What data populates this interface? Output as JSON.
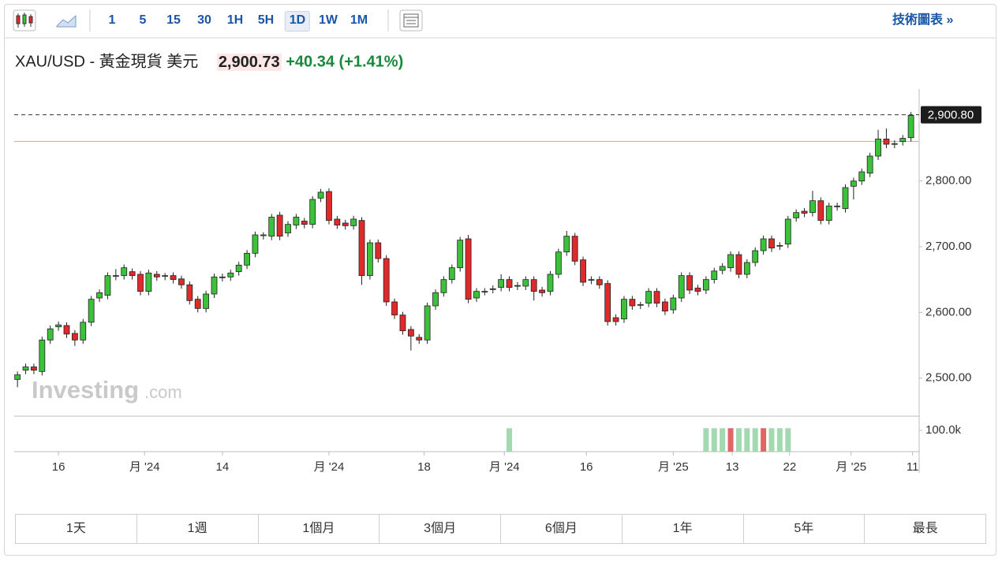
{
  "toolbar": {
    "intervals": [
      "1",
      "5",
      "15",
      "30",
      "1H",
      "5H",
      "1D",
      "1W",
      "1M"
    ],
    "selected_interval": "1D",
    "link": "技術圖表 »"
  },
  "quote": {
    "symbol": "XAU/USD - 黃金現貨 美元",
    "price": "2,900.73",
    "change": "+40.34",
    "change_percent": "(+1.41%)"
  },
  "ranges": [
    "1天",
    "1週",
    "1個月",
    "3個月",
    "6個月",
    "1年",
    "5年",
    "最長"
  ],
  "watermark": {
    "brand": "Investing",
    "suffix": ".com"
  },
  "chart_data": {
    "type": "candlestick",
    "up_color": "#3cc13b",
    "down_color": "#e0292b",
    "open": [
      2498,
      2512,
      2517,
      2510,
      2558,
      2578,
      2580,
      2568,
      2558,
      2585,
      2622,
      2626,
      2655,
      2656,
      2662,
      2658,
      2632,
      2658,
      2655,
      2656,
      2651,
      2642,
      2620,
      2606,
      2628,
      2653,
      2654,
      2662,
      2672,
      2690,
      2717,
      2716,
      2748,
      2721,
      2733,
      2739,
      2734,
      2774,
      2784,
      2742,
      2736,
      2732,
      2740,
      2656,
      2706,
      2682,
      2616,
      2596,
      2574,
      2562,
      2558,
      2610,
      2630,
      2650,
      2668,
      2712,
      2622,
      2631,
      2635,
      2638,
      2650,
      2640,
      2640,
      2650,
      2634,
      2632,
      2658,
      2692,
      2716,
      2680,
      2649,
      2650,
      2644,
      2592,
      2590,
      2620,
      2611,
      2614,
      2632,
      2616,
      2604,
      2622,
      2656,
      2637,
      2634,
      2650,
      2664,
      2668,
      2688,
      2658,
      2676,
      2694,
      2712,
      2701,
      2704,
      2744,
      2754,
      2752,
      2770,
      2740,
      2761,
      2758,
      2792,
      2800,
      2812,
      2838,
      2864,
      2856,
      2860,
      2866
    ],
    "high": [
      2510,
      2522,
      2522,
      2563,
      2580,
      2586,
      2585,
      2573,
      2590,
      2625,
      2635,
      2661,
      2666,
      2673,
      2667,
      2663,
      2665,
      2663,
      2660,
      2661,
      2656,
      2647,
      2625,
      2633,
      2659,
      2659,
      2665,
      2677,
      2695,
      2723,
      2722,
      2750,
      2753,
      2739,
      2750,
      2744,
      2777,
      2788,
      2789,
      2747,
      2741,
      2747,
      2745,
      2711,
      2711,
      2687,
      2621,
      2601,
      2579,
      2567,
      2615,
      2635,
      2655,
      2673,
      2715,
      2718,
      2637,
      2637,
      2641,
      2658,
      2655,
      2646,
      2655,
      2655,
      2639,
      2663,
      2697,
      2724,
      2721,
      2685,
      2655,
      2655,
      2649,
      2597,
      2625,
      2625,
      2616,
      2637,
      2637,
      2621,
      2627,
      2661,
      2661,
      2642,
      2655,
      2668,
      2675,
      2693,
      2693,
      2681,
      2699,
      2717,
      2717,
      2707,
      2747,
      2757,
      2759,
      2785,
      2775,
      2767,
      2767,
      2795,
      2805,
      2819,
      2843,
      2878,
      2880,
      2862,
      2870,
      2905
    ],
    "low": [
      2486,
      2506,
      2506,
      2504,
      2552,
      2572,
      2561,
      2549,
      2552,
      2579,
      2616,
      2620,
      2649,
      2650,
      2650,
      2626,
      2626,
      2648,
      2649,
      2644,
      2636,
      2612,
      2600,
      2600,
      2622,
      2647,
      2648,
      2656,
      2666,
      2684,
      2711,
      2710,
      2710,
      2715,
      2727,
      2728,
      2728,
      2768,
      2734,
      2727,
      2726,
      2726,
      2642,
      2650,
      2676,
      2610,
      2590,
      2566,
      2542,
      2552,
      2552,
      2604,
      2624,
      2644,
      2662,
      2614,
      2616,
      2626,
      2629,
      2632,
      2632,
      2634,
      2634,
      2618,
      2624,
      2626,
      2652,
      2686,
      2672,
      2640,
      2643,
      2636,
      2580,
      2580,
      2584,
      2604,
      2605,
      2608,
      2608,
      2596,
      2598,
      2616,
      2628,
      2626,
      2628,
      2644,
      2658,
      2662,
      2652,
      2652,
      2670,
      2688,
      2692,
      2695,
      2698,
      2738,
      2745,
      2746,
      2734,
      2734,
      2755,
      2752,
      2772,
      2794,
      2806,
      2832,
      2850,
      2850,
      2854,
      2860
    ],
    "close": [
      2505,
      2517,
      2512,
      2558,
      2575,
      2581,
      2567,
      2558,
      2585,
      2620,
      2630,
      2656,
      2656,
      2668,
      2656,
      2632,
      2660,
      2654,
      2656,
      2650,
      2642,
      2618,
      2606,
      2628,
      2654,
      2654,
      2660,
      2672,
      2690,
      2718,
      2718,
      2745,
      2716,
      2734,
      2745,
      2734,
      2772,
      2783,
      2740,
      2733,
      2732,
      2742,
      2656,
      2706,
      2682,
      2616,
      2596,
      2572,
      2564,
      2558,
      2610,
      2630,
      2650,
      2668,
      2710,
      2620,
      2632,
      2632,
      2636,
      2650,
      2638,
      2641,
      2650,
      2632,
      2630,
      2658,
      2692,
      2716,
      2678,
      2646,
      2650,
      2642,
      2586,
      2586,
      2620,
      2610,
      2612,
      2632,
      2614,
      2602,
      2622,
      2656,
      2634,
      2632,
      2650,
      2663,
      2670,
      2688,
      2658,
      2676,
      2694,
      2712,
      2698,
      2702,
      2742,
      2752,
      2751,
      2770,
      2740,
      2762,
      2762,
      2790,
      2800,
      2814,
      2838,
      2864,
      2856,
      2857,
      2865,
      2900
    ],
    "xlim": [
      -0.4,
      110
    ],
    "xticks": [
      {
        "value": 5,
        "label": "16"
      },
      {
        "value": 15.5,
        "label": "月 '24"
      },
      {
        "value": 25,
        "label": "14"
      },
      {
        "value": 38,
        "label": "月 '24"
      },
      {
        "value": 49.6,
        "label": "18"
      },
      {
        "value": 59.4,
        "label": "月 '24"
      },
      {
        "value": 69.4,
        "label": "16"
      },
      {
        "value": 80,
        "label": "月 '25"
      },
      {
        "value": 87.2,
        "label": "13"
      },
      {
        "value": 94.2,
        "label": "22"
      },
      {
        "value": 101.7,
        "label": "月 '25"
      },
      {
        "value": 109.2,
        "label": "11"
      }
    ],
    "ylim": [
      2442,
      2940
    ],
    "yticks": [
      {
        "value": 2500,
        "label": "2,500.00"
      },
      {
        "value": 2600,
        "label": "2,600.00"
      },
      {
        "value": 2700,
        "label": "2,700.00"
      },
      {
        "value": 2800,
        "label": "2,800.00"
      }
    ],
    "last_price": {
      "value": 2900.8,
      "label": "2,900.80"
    },
    "previous_close": 2860.39,
    "volume": {
      "x": [
        60,
        84,
        85,
        86,
        87,
        88,
        89,
        90,
        91,
        92,
        93,
        94
      ],
      "values": [
        110000,
        110000,
        110000,
        110000,
        110000,
        110000,
        110000,
        110000,
        110000,
        110000,
        110000,
        110000
      ],
      "colors": [
        "#a3d9b1",
        "#a3d9b1",
        "#a3d9b1",
        "#a3d9b1",
        "#e06666",
        "#a3d9b1",
        "#a3d9b1",
        "#a3d9b1",
        "#e06666",
        "#a3d9b1",
        "#a3d9b1",
        "#a3d9b1"
      ],
      "ylim": [
        0,
        159000
      ],
      "yticks": [
        {
          "value": 100000,
          "label": "100.0k"
        }
      ]
    }
  }
}
